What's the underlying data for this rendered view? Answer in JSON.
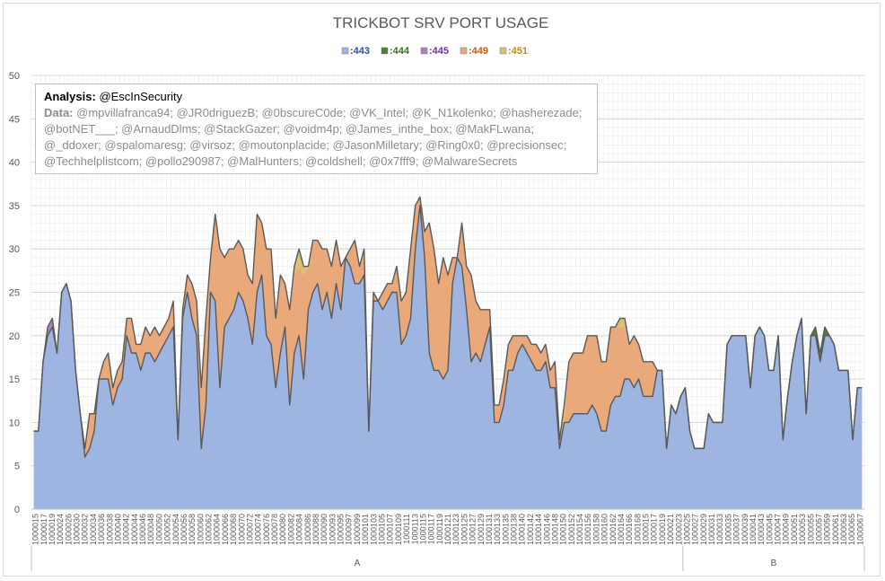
{
  "chart_data": {
    "type": "area",
    "title": "TRICKBOT SRV PORT USAGE",
    "ylim": [
      0,
      50
    ],
    "yticks": [
      0,
      5,
      10,
      15,
      20,
      25,
      30,
      35,
      40,
      45,
      50
    ],
    "grid": true,
    "legend_position": "top",
    "stacked": true,
    "series": [
      {
        "name": ":443",
        "color": "#9db5e0",
        "label_color": "#2f4f8f",
        "values": [
          9,
          9,
          17,
          20,
          21,
          18,
          25,
          26,
          24,
          16,
          11,
          6,
          7,
          9,
          15,
          15,
          15,
          12,
          14,
          15,
          20,
          18,
          18,
          16,
          18,
          18,
          17,
          18,
          19,
          20,
          21,
          8,
          22,
          25,
          22,
          20,
          7,
          12,
          25,
          24,
          14,
          21,
          22,
          23,
          25,
          24,
          22,
          19,
          25,
          27,
          20,
          19,
          14,
          18,
          21,
          12,
          18,
          20,
          15,
          23,
          25,
          26,
          23,
          25,
          22,
          26,
          23,
          29,
          28,
          26,
          26,
          27,
          9,
          24,
          24,
          23,
          24,
          25,
          25,
          19,
          20,
          22,
          30,
          35,
          29,
          18,
          16,
          16,
          15,
          16,
          26,
          29,
          28,
          23,
          17,
          18,
          17,
          19,
          21,
          10,
          10,
          12,
          16,
          16,
          18,
          19,
          18,
          17,
          16,
          16,
          17,
          14,
          14,
          7,
          10,
          10,
          11,
          11,
          11,
          11,
          12,
          11,
          9,
          9,
          12,
          13,
          13,
          15,
          15,
          14,
          15,
          13,
          13,
          13,
          16,
          16,
          7,
          12,
          11,
          13,
          14,
          9,
          7,
          7,
          7,
          11,
          10,
          10,
          10,
          19,
          20,
          20,
          20,
          20,
          14,
          20,
          21,
          20,
          16,
          16,
          20,
          8,
          13,
          17,
          20,
          22,
          11,
          20,
          20,
          17,
          20,
          20,
          19,
          16,
          16,
          16,
          8,
          14,
          14
        ]
      },
      {
        "name": ":444",
        "color": "#507e32",
        "label_color": "#3f6b2a",
        "values": [
          0,
          0,
          0,
          0,
          0,
          0,
          0,
          0,
          0,
          0,
          0,
          0,
          0,
          0,
          0,
          0,
          0,
          0,
          0,
          0,
          0,
          0,
          0,
          0,
          0,
          0,
          0,
          0,
          0,
          0,
          0,
          0,
          0,
          0,
          0,
          0,
          0,
          0,
          0,
          0,
          0,
          0,
          0,
          0,
          0,
          0,
          0,
          0,
          0,
          0,
          0,
          0,
          0,
          0,
          0,
          0,
          0,
          0,
          0,
          0,
          0,
          0,
          0,
          0,
          0,
          0,
          0,
          0,
          0,
          0,
          0,
          0,
          0,
          0,
          0,
          0,
          0,
          0,
          0,
          0,
          0,
          0,
          0,
          0,
          0,
          0,
          0,
          0,
          0,
          0,
          0,
          0,
          0,
          0,
          0,
          0,
          0,
          0,
          0,
          0,
          0,
          0,
          0,
          0,
          0,
          0,
          0,
          0,
          0,
          0,
          0,
          0,
          0,
          0,
          0,
          0,
          0,
          0,
          0,
          0,
          0,
          0,
          0,
          0,
          0,
          0,
          0,
          0,
          0,
          0,
          0,
          0,
          0,
          0,
          0,
          0,
          0,
          0,
          0,
          0,
          0,
          0,
          0,
          0,
          0,
          0,
          0,
          0,
          0,
          0,
          0,
          0,
          0,
          0,
          0,
          0,
          0,
          0,
          0,
          0,
          0,
          0,
          0,
          0,
          0,
          0,
          0,
          0,
          1,
          1,
          1,
          0,
          0,
          0,
          0,
          0,
          0,
          0,
          0
        ]
      },
      {
        "name": ":445",
        "color": "#a980c9",
        "label_color": "#7030a0",
        "values": [
          0,
          0,
          0,
          1,
          1,
          0,
          0,
          0,
          0,
          0,
          0,
          0,
          0,
          0,
          0,
          0,
          0,
          0,
          0,
          0,
          0,
          0,
          0,
          0,
          0,
          0,
          0,
          0,
          0,
          0,
          0,
          0,
          0,
          0,
          0,
          0,
          0,
          0,
          0,
          0,
          0,
          0,
          0,
          0,
          0,
          0,
          0,
          0,
          0,
          0,
          0,
          0,
          0,
          0,
          0,
          0,
          0,
          0,
          0,
          0,
          0,
          0,
          0,
          0,
          0,
          0,
          0,
          0,
          0,
          0,
          0,
          0,
          0,
          0,
          0,
          0,
          0,
          0,
          0,
          0,
          0,
          0,
          0,
          0,
          0,
          0,
          0,
          0,
          0,
          0,
          0,
          0,
          0,
          0,
          0,
          0,
          0,
          0,
          0,
          0,
          0,
          0,
          0,
          0,
          0,
          0,
          0,
          0,
          0,
          0,
          0,
          0,
          0,
          0,
          0,
          0,
          0,
          0,
          0,
          0,
          0,
          0,
          0,
          0,
          0,
          0,
          0,
          0,
          0,
          0,
          0,
          0,
          0,
          0,
          0,
          0,
          0,
          0,
          0,
          0,
          0,
          0,
          0,
          0,
          0,
          0,
          0,
          0,
          0,
          0,
          0,
          0,
          0,
          0,
          0,
          0,
          0,
          0,
          0,
          0,
          0,
          0,
          0,
          0,
          0,
          0,
          0,
          0,
          0,
          0,
          0,
          0,
          0,
          0,
          0,
          0,
          0,
          0,
          0
        ]
      },
      {
        "name": ":449",
        "color": "#e9a97a",
        "label_color": "#c55a11",
        "values": [
          0,
          0,
          0,
          0,
          0,
          0,
          0,
          0,
          0,
          0,
          0,
          1,
          4,
          2,
          0,
          2,
          3,
          2,
          2,
          2,
          2,
          4,
          1,
          3,
          3,
          2,
          4,
          2,
          2,
          2,
          3,
          0,
          1,
          2,
          4,
          4,
          7,
          10,
          4,
          10,
          16,
          8,
          8,
          7,
          6,
          6,
          5,
          7,
          9,
          6,
          10,
          11,
          8,
          9,
          5,
          11,
          9,
          8,
          12,
          5,
          6,
          5,
          7,
          5,
          6,
          5,
          5,
          0,
          2,
          5,
          2,
          3,
          0,
          1,
          0,
          2,
          2,
          1,
          3,
          5,
          5,
          8,
          5,
          1,
          3,
          15,
          14,
          10,
          14,
          11,
          3,
          0,
          5,
          5,
          10,
          6,
          6,
          4,
          2,
          2,
          2,
          3,
          3,
          4,
          2,
          1,
          2,
          2,
          3,
          2,
          2,
          2,
          3,
          1,
          0,
          7,
          7,
          7,
          7,
          9,
          8,
          9,
          8,
          8,
          9,
          8,
          8,
          6,
          4,
          6,
          4,
          4,
          4,
          4,
          0,
          0,
          0,
          0,
          0,
          0,
          0,
          0,
          0,
          0,
          0,
          0,
          0,
          0,
          0,
          0,
          0,
          0,
          0,
          0,
          0,
          0,
          0,
          0,
          0,
          0,
          0,
          0,
          0,
          0,
          0,
          0,
          0,
          0,
          0,
          0,
          0,
          0,
          0,
          0,
          0,
          0,
          0,
          0,
          0
        ]
      },
      {
        "name": ":451",
        "color": "#d9c174",
        "label_color": "#bf9000",
        "values": [
          0,
          0,
          0,
          0,
          0,
          0,
          0,
          0,
          0,
          0,
          0,
          0,
          0,
          0,
          0,
          0,
          0,
          0,
          0,
          0,
          0,
          0,
          0,
          0,
          0,
          0,
          0,
          0,
          0,
          0,
          0,
          0,
          0,
          0,
          0,
          0,
          0,
          0,
          0,
          0,
          0,
          0,
          0,
          0,
          0,
          0,
          0,
          0,
          0,
          0,
          0,
          0,
          0,
          0,
          0,
          0,
          1,
          2,
          1,
          0,
          0,
          0,
          0,
          0,
          0,
          0,
          0,
          0,
          0,
          0,
          0,
          0,
          0,
          0,
          0,
          0,
          0,
          0,
          0,
          0,
          0,
          0,
          0,
          0,
          0,
          0,
          0,
          0,
          0,
          0,
          0,
          0,
          0,
          0,
          0,
          0,
          0,
          0,
          0,
          0,
          0,
          0,
          0,
          0,
          0,
          0,
          0,
          0,
          0,
          0,
          0,
          0,
          0,
          0,
          2,
          0,
          0,
          0,
          0,
          0,
          0,
          0,
          0,
          0,
          0,
          0,
          1,
          1,
          0,
          0,
          0,
          0,
          0,
          0,
          0,
          0,
          0,
          0,
          0,
          0,
          0,
          0,
          0,
          0,
          0,
          0,
          0,
          0,
          0,
          0,
          0,
          0,
          0,
          0,
          0,
          0,
          0,
          0,
          0,
          0,
          0,
          0,
          0,
          0,
          0,
          0,
          0,
          0,
          0,
          0,
          0,
          0,
          0,
          0,
          0,
          0,
          0,
          0,
          0
        ]
      }
    ],
    "x_tick_labels": [
      "1000015",
      "1000017",
      "1000019",
      "1000024",
      "1000026",
      "1000030",
      "1000032",
      "1000034",
      "1000036",
      "1000038",
      "1000040",
      "1000042",
      "1000044",
      "1000046",
      "1000048",
      "1000050",
      "1000052",
      "1000054",
      "1000056",
      "1000058",
      "1000060",
      "1000062",
      "1000064",
      "1000066",
      "1000068",
      "1000070",
      "1000072",
      "1000074",
      "1000076",
      "1000078",
      "1000080",
      "1000082",
      "1000084",
      "1000086",
      "1000088",
      "1000090",
      "1000093",
      "1000095",
      "1000097",
      "1000099",
      "1000101",
      "1000103",
      "1000105",
      "1000107",
      "1000109",
      "1000111",
      "1000113",
      "1000115",
      "1000117",
      "1000119",
      "1000121",
      "1000123",
      "1000125",
      "1000127",
      "1000129",
      "1000131",
      "1000133",
      "1000135",
      "1000138",
      "1000140",
      "1000142",
      "1000144",
      "1000146",
      "1000148",
      "1000150",
      "1000152",
      "1000154",
      "1000156",
      "1000158",
      "1000160",
      "1000162",
      "1000164",
      "1000166",
      "1000168",
      "1000015",
      "1000017",
      "1000019",
      "1000021",
      "1000023",
      "1000025",
      "1000027",
      "1000029",
      "1000031",
      "1000033",
      "1000035",
      "1000037",
      "1000039",
      "1000041",
      "1000043",
      "1000045",
      "1000047",
      "1000049",
      "1000051",
      "1000053",
      "1000055",
      "1000057",
      "1000059",
      "1000061",
      "1000063",
      "1000065",
      "1000067"
    ],
    "groups": [
      {
        "label": "A",
        "count": 140
      },
      {
        "label": "B",
        "count": 39
      }
    ]
  },
  "annotation": {
    "analysis_label": "Analysis:",
    "analysis_value": "@EscInSecurity",
    "data_label": "Data:",
    "data_value": "@mpvillafranca94; @JR0driguezB; @0bscureC0de; @VK_Intel; @K_N1kolenko; @hasherezade; @botNET___; @ArnaudDlms; @StackGazer; @voidm4p; @James_inthe_box; @MakFLwana; @_ddoxer; @spalomaresg; @virsoz; @moutonplacide; @JasonMilletary; @Ring0x0; @precisionsec; @Techhelplistcom; @pollo290987; @MalHunters; @coldshell; @0x7fff9; @MalwareSecrets"
  }
}
